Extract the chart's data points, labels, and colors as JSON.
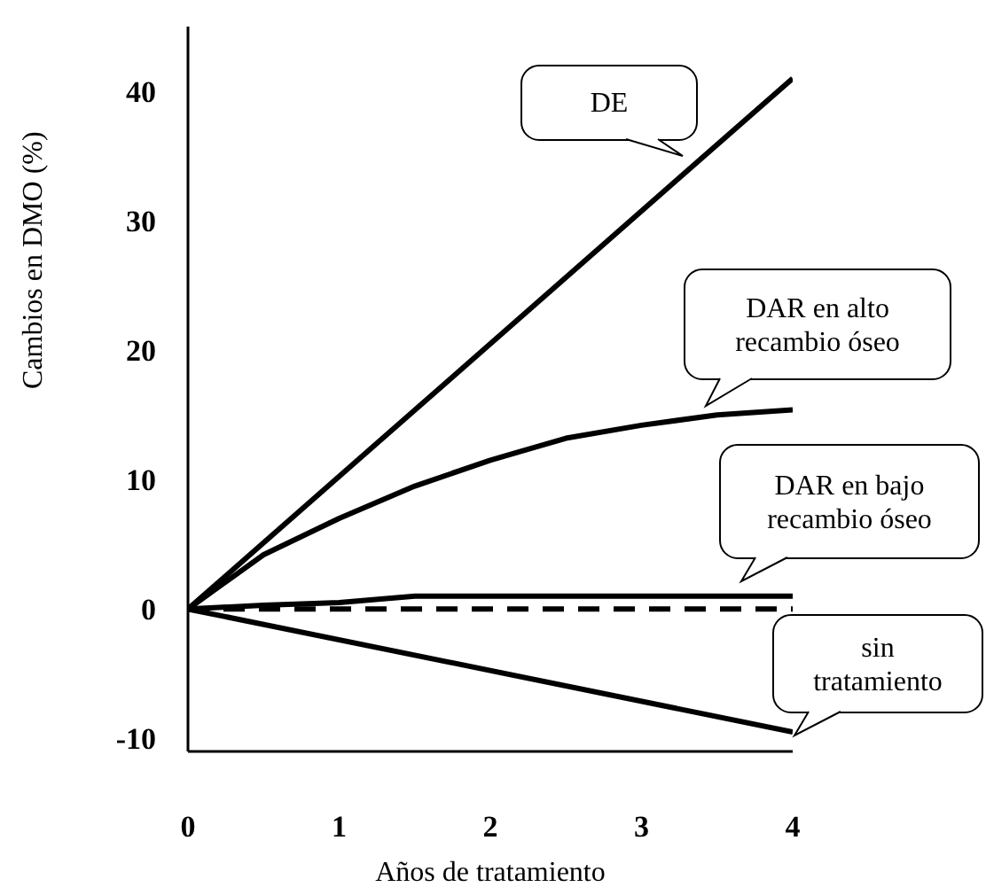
{
  "chart_data": {
    "type": "line",
    "xlabel": "Años de tratamiento",
    "ylabel": "Cambios en DMO (%)",
    "xlim": [
      0,
      4
    ],
    "xticks": [
      0,
      1,
      2,
      3,
      4
    ],
    "ylim": [
      -11,
      45
    ],
    "yticks": [
      -10,
      0,
      10,
      20,
      30,
      40
    ],
    "marker": "none",
    "series": [
      {
        "name": "DE",
        "color": "#000000",
        "x": [
          0,
          4
        ],
        "values": [
          0,
          41
        ]
      },
      {
        "name": "DAR en alto recambio óseo",
        "color": "#000000",
        "x": [
          0,
          0.5,
          1,
          1.5,
          2,
          2.5,
          3,
          3.5,
          4
        ],
        "values": [
          0,
          4.2,
          7,
          9.5,
          11.5,
          13.2,
          14.2,
          15,
          15.4
        ]
      },
      {
        "name": "DAR en bajo recambio óseo",
        "color": "#000000",
        "x": [
          0,
          0.5,
          1,
          1.5,
          4
        ],
        "values": [
          0,
          0.3,
          0.5,
          1,
          1
        ]
      },
      {
        "color": "#000000",
        "line_style": "dashed",
        "x": [
          0,
          4
        ],
        "values": [
          0,
          0
        ]
      },
      {
        "name": "sin tratamiento",
        "color": "#000000",
        "x": [
          0,
          4
        ],
        "values": [
          0,
          -9.5
        ]
      }
    ]
  }
}
